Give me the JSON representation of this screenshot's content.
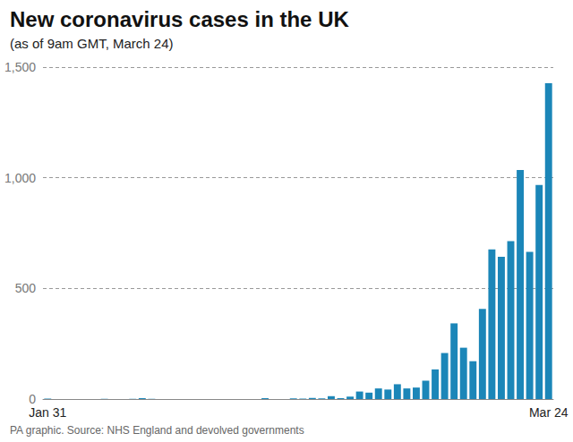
{
  "chart_data": {
    "type": "bar",
    "title": "New coronavirus cases in the UK",
    "subtitle": "(as of 9am GMT, March 24)",
    "source": "PA graphic. Source: NHS England and devolved governments",
    "categories": [
      "Jan 31",
      null,
      null,
      null,
      null,
      null,
      null,
      null,
      null,
      null,
      null,
      null,
      null,
      null,
      null,
      null,
      null,
      null,
      null,
      null,
      null,
      null,
      null,
      null,
      null,
      null,
      null,
      null,
      null,
      null,
      null,
      null,
      null,
      null,
      null,
      null,
      null,
      null,
      null,
      null,
      null,
      null,
      null,
      null,
      null,
      null,
      null,
      null,
      null,
      null,
      null,
      null,
      null,
      "Mar 24"
    ],
    "values": [
      2,
      0,
      0,
      0,
      0,
      0,
      1,
      0,
      0,
      1,
      4,
      1,
      0,
      0,
      0,
      0,
      0,
      0,
      0,
      0,
      0,
      0,
      0,
      4,
      0,
      0,
      3,
      2,
      5,
      3,
      13,
      4,
      11,
      34,
      29,
      48,
      43,
      67,
      48,
      52,
      83,
      134,
      208,
      342,
      232,
      171,
      407,
      676,
      643,
      714,
      1035,
      665,
      967,
      1427
    ],
    "color": "#1b86b8",
    "ylim": [
      0,
      1500
    ],
    "yticks": [
      0,
      500,
      {
        "value": 1000,
        "label": "1,000"
      },
      {
        "value": 1500,
        "label": "1,500"
      }
    ],
    "grid": true
  }
}
